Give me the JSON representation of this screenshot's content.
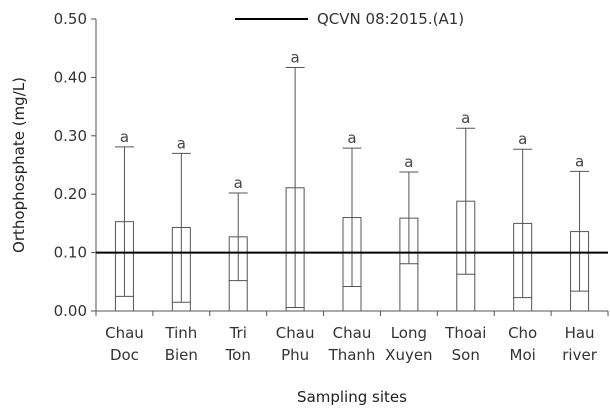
{
  "chart_data": {
    "type": "bar",
    "xlabel": "Sampling sites",
    "ylabel": "Orthophosphate (mg/L)",
    "ylim": [
      0,
      0.5
    ],
    "yticks": [
      "0.00",
      "0.10",
      "0.20",
      "0.30",
      "0.40",
      "0.50"
    ],
    "categories": [
      [
        "Chau",
        "Doc"
      ],
      [
        "Tinh",
        "Bien"
      ],
      [
        "Tri",
        "Ton"
      ],
      [
        "Chau",
        "Phu"
      ],
      [
        "Chau",
        "Thanh"
      ],
      [
        "Long",
        "Xuyen"
      ],
      [
        "Thoai",
        "Son"
      ],
      [
        "Cho",
        "Moi"
      ],
      [
        "Hau",
        "river"
      ]
    ],
    "series": [
      {
        "values": [
          0.153,
          0.143,
          0.127,
          0.211,
          0.16,
          0.159,
          0.188,
          0.15,
          0.136
        ],
        "low": [
          0.025,
          0.015,
          0.052,
          0.006,
          0.042,
          0.081,
          0.063,
          0.023,
          0.034
        ],
        "high": [
          0.281,
          0.27,
          0.202,
          0.417,
          0.279,
          0.238,
          0.313,
          0.277,
          0.239
        ],
        "letters": [
          "a",
          "a",
          "a",
          "a",
          "a",
          "a",
          "a",
          "a",
          "a"
        ]
      }
    ],
    "reference_line": {
      "value": 0.1,
      "label": "QCVN 08:2015.(A1)"
    },
    "legend": "top-center",
    "grid": false,
    "colors": {
      "bar_fill": "#ffffff",
      "bar_stroke": "#555555",
      "axis": "#555555",
      "reference_line": "#000000"
    }
  }
}
